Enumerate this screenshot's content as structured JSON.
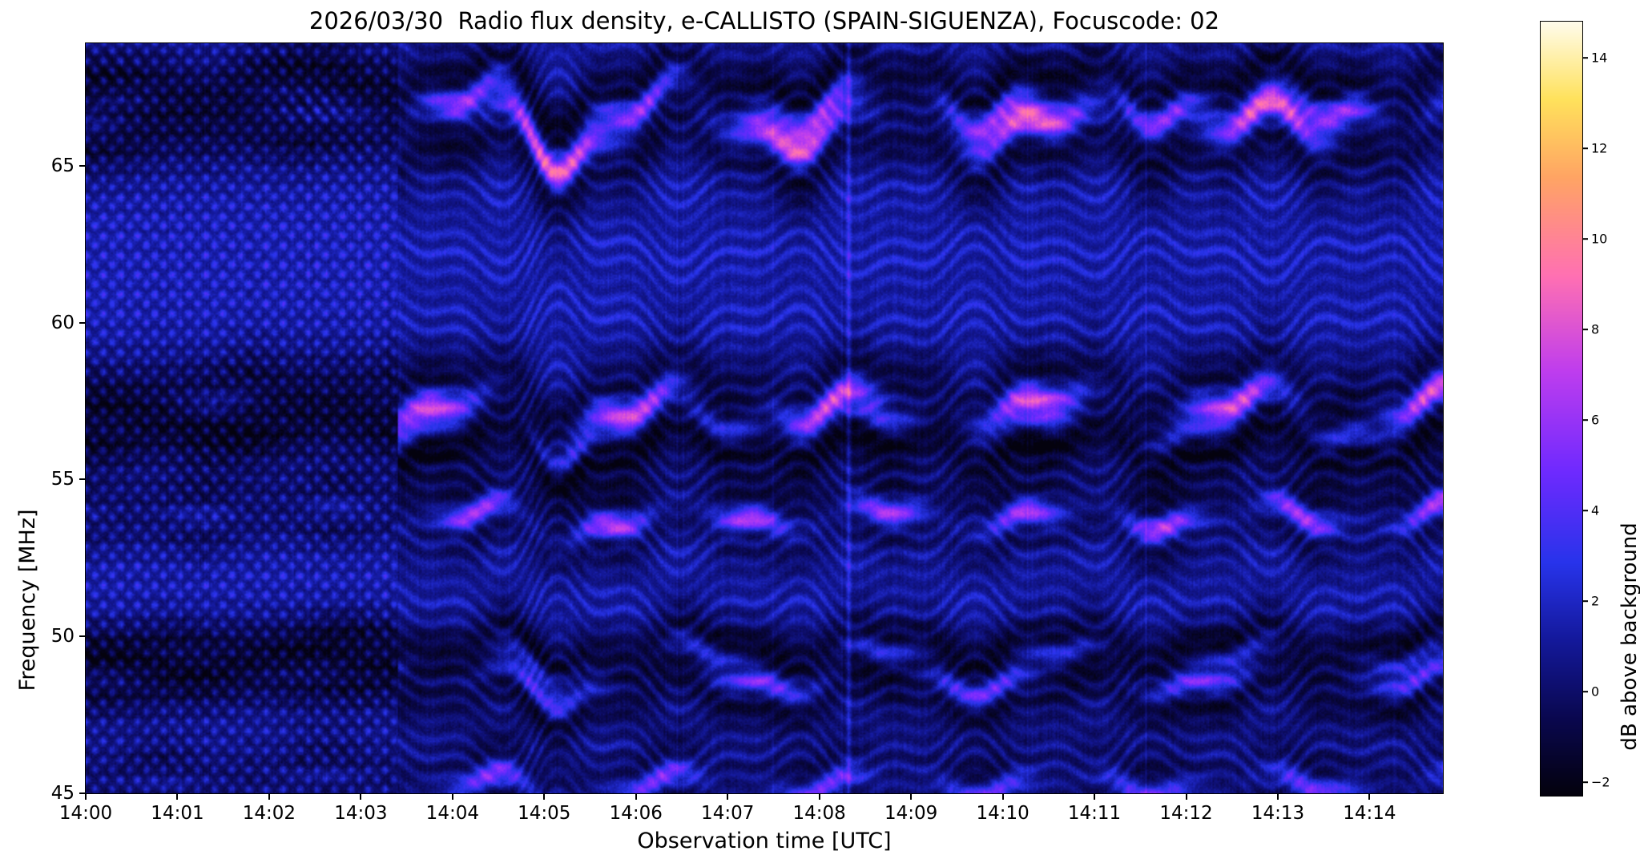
{
  "figure": {
    "title": "2026/03/30  Radio flux density, e-CALLISTO (SPAIN-SIGUENZA), Focuscode: 02",
    "background_color": "#ffffff"
  },
  "chart_data": {
    "type": "heatmap",
    "title": "2026/03/30  Radio flux density, e-CALLISTO (SPAIN-SIGUENZA), Focuscode: 02",
    "xlabel": "Observation time [UTC]",
    "ylabel": "Frequency [MHz]",
    "grid": false,
    "x_range_minutes": [
      0,
      14.8
    ],
    "x_ticks": [
      {
        "minute": 0,
        "label": "14:00"
      },
      {
        "minute": 1,
        "label": "14:01"
      },
      {
        "minute": 2,
        "label": "14:02"
      },
      {
        "minute": 3,
        "label": "14:03"
      },
      {
        "minute": 4,
        "label": "14:04"
      },
      {
        "minute": 5,
        "label": "14:05"
      },
      {
        "minute": 6,
        "label": "14:06"
      },
      {
        "minute": 7,
        "label": "14:07"
      },
      {
        "minute": 8,
        "label": "14:08"
      },
      {
        "minute": 9,
        "label": "14:09"
      },
      {
        "minute": 10,
        "label": "14:10"
      },
      {
        "minute": 11,
        "label": "14:11"
      },
      {
        "minute": 12,
        "label": "14:12"
      },
      {
        "minute": 13,
        "label": "14:13"
      },
      {
        "minute": 14,
        "label": "14:14"
      }
    ],
    "y_range_mhz": [
      45,
      68.9
    ],
    "y_ticks": [
      {
        "mhz": 65,
        "label": "65"
      },
      {
        "mhz": 60,
        "label": "60"
      },
      {
        "mhz": 55,
        "label": "55"
      },
      {
        "mhz": 50,
        "label": "50"
      },
      {
        "mhz": 45,
        "label": "45"
      }
    ],
    "colorbar": {
      "label": "dB above background",
      "vmin": -2.3,
      "vmax": 14.8,
      "ticks": [
        {
          "value": 14,
          "label": "14"
        },
        {
          "value": 12,
          "label": "12"
        },
        {
          "value": 10,
          "label": "10"
        },
        {
          "value": 8,
          "label": "8"
        },
        {
          "value": 6,
          "label": "6"
        },
        {
          "value": 4,
          "label": "4"
        },
        {
          "value": 2,
          "label": "2"
        },
        {
          "value": 0,
          "label": "0"
        },
        {
          "value": -2,
          "label": "−2"
        }
      ]
    },
    "colormap_stops": [
      [
        0.0,
        4,
        2,
        14
      ],
      [
        0.1,
        10,
        8,
        80
      ],
      [
        0.2,
        20,
        25,
        155
      ],
      [
        0.3,
        40,
        52,
        235
      ],
      [
        0.42,
        112,
        42,
        255
      ],
      [
        0.55,
        192,
        62,
        238
      ],
      [
        0.67,
        255,
        112,
        180
      ],
      [
        0.8,
        255,
        165,
        100
      ],
      [
        0.9,
        255,
        226,
        92
      ],
      [
        1.0,
        255,
        252,
        235
      ]
    ],
    "features": {
      "description": "Quiet-sun spectrogram dominated by wavy horizontal interference fringes; fine diagonal fringe lattice before ~14:03.4, larger undulating fringes afterwards; pronounced downward wave dip near 14:05.2; faint vertical line near 14:08.3; no solar burst.",
      "background_level_db": 0.9,
      "fringe_spacing_mhz": 0.62,
      "pattern_transition_minute": 3.4,
      "wave_dip_minute": 5.15,
      "vertical_line_minute": 8.32,
      "bright_bands": [
        {
          "f": 67.05,
          "amp": 9.0,
          "sigma": 0.35,
          "period": 1.9,
          "phase": 0.5,
          "drift": 1.0
        },
        {
          "f": 66.25,
          "amp": 12.0,
          "sigma": 0.4,
          "period": 2.6,
          "phase": 1.8,
          "drift": 1.0
        },
        {
          "f": 57.35,
          "amp": 11.0,
          "sigma": 0.38,
          "period": 2.2,
          "phase": 3.5,
          "drift": 0.8
        },
        {
          "f": 56.65,
          "amp": 6.0,
          "sigma": 0.3,
          "period": 1.7,
          "phase": 0.9,
          "drift": 0.8
        },
        {
          "f": 53.8,
          "amp": 8.5,
          "sigma": 0.3,
          "period": 1.5,
          "phase": 2.6,
          "drift": 0.6
        },
        {
          "f": 49.3,
          "amp": 6.0,
          "sigma": 0.28,
          "period": 1.9,
          "phase": 4.2,
          "drift": 0.6
        },
        {
          "f": 48.6,
          "amp": 8.0,
          "sigma": 0.3,
          "period": 2.4,
          "phase": 1.1,
          "drift": 0.6
        },
        {
          "f": 45.25,
          "amp": 7.0,
          "sigma": 0.3,
          "period": 1.8,
          "phase": 5.0,
          "drift": 0.5
        }
      ]
    }
  }
}
